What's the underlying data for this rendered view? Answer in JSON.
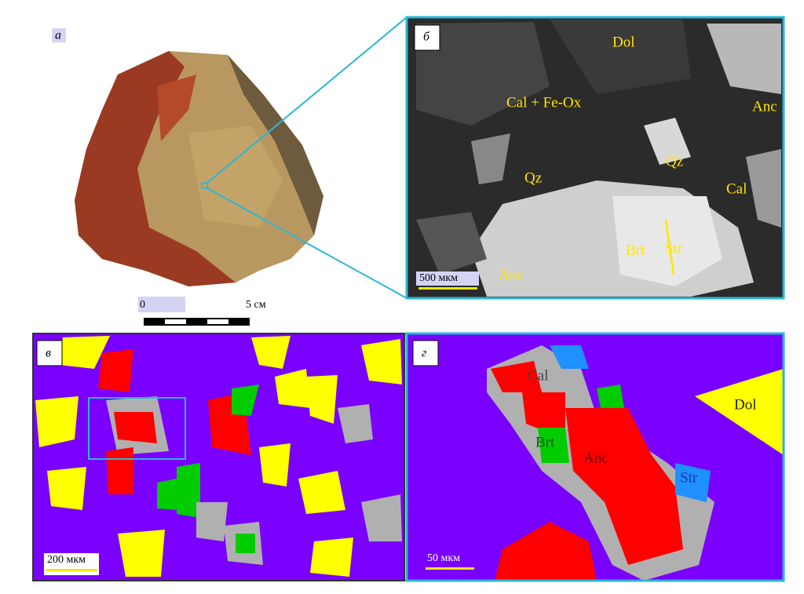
{
  "panels": [
    {
      "label": "а",
      "scale_start": "0",
      "scale_end": "5 см"
    },
    {
      "label": "б",
      "scale": "500 мкм",
      "annotations": [
        "Dol",
        "Cal + Fe-Ox",
        "Anc",
        "Qz",
        "Qz",
        "Cal",
        "Brt",
        "Str",
        "Anc"
      ]
    },
    {
      "label": "в",
      "scale": "200 мкм"
    },
    {
      "label": "г",
      "scale": "50 мкм",
      "annotations": [
        "Cal",
        "Dol",
        "Brt",
        "Anc",
        "Str"
      ]
    }
  ]
}
